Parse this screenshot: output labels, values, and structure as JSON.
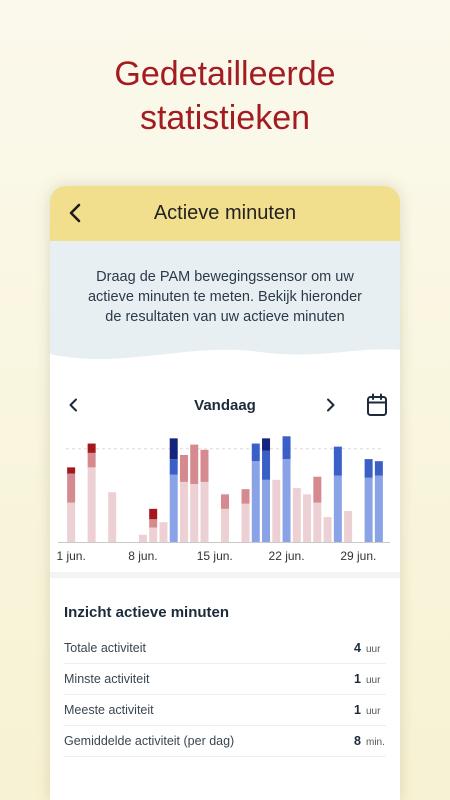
{
  "headline": {
    "line1": "Gedetailleerde",
    "line2": "statistieken"
  },
  "header": {
    "title": "Actieve minuten",
    "back_icon": "chevron-left-icon"
  },
  "info": {
    "text": "Draag de PAM bewegingssensor om uw actieve minuten te meten. Bekijk hieronder de resultaten van uw actieve minuten"
  },
  "period": {
    "label": "Vandaag",
    "prev_icon": "chevron-left-icon",
    "next_icon": "chevron-right-icon",
    "calendar_icon": "calendar-icon"
  },
  "colors": {
    "past_light": "#ecd0d3",
    "past_mid": "#d48a8e",
    "past_dark": "#a3181d",
    "cur_light": "#8aa3e6",
    "cur_mid": "#3a60c8",
    "cur_dark": "#15247a",
    "accent": "#a31c22",
    "header": "#f2df8d"
  },
  "chart_data": {
    "type": "bar",
    "stacked": true,
    "x_tick_labels": [
      "1 jun.",
      "8 jun.",
      "15 jun.",
      "22 jun.",
      "29 jun."
    ],
    "categories": [
      "1",
      "2",
      "3",
      "4",
      "5",
      "6",
      "7",
      "8",
      "9",
      "10",
      "11",
      "12",
      "13",
      "14",
      "15",
      "16",
      "17",
      "18",
      "19",
      "20",
      "21",
      "22",
      "23",
      "24",
      "25",
      "26",
      "27",
      "28",
      "29",
      "30",
      "31"
    ],
    "period_highlight": [
      false,
      false,
      false,
      false,
      false,
      false,
      false,
      false,
      false,
      false,
      true,
      false,
      false,
      false,
      false,
      false,
      false,
      false,
      true,
      true,
      false,
      true,
      false,
      false,
      false,
      false,
      true,
      false,
      true,
      true,
      true
    ],
    "series": [
      {
        "values": [
          38,
          0,
          72,
          0,
          48,
          0,
          0,
          7,
          14,
          19,
          65,
          58,
          56,
          58,
          0,
          32,
          0,
          37,
          78,
          60,
          60,
          80,
          52,
          46,
          38,
          24,
          64,
          30,
          0,
          62,
          64
        ]
      },
      {
        "values": [
          28,
          0,
          14,
          0,
          0,
          0,
          0,
          0,
          8,
          0,
          15,
          26,
          38,
          31,
          0,
          14,
          0,
          14,
          17,
          28,
          0,
          22,
          0,
          0,
          25,
          0,
          28,
          0,
          0,
          18,
          14
        ]
      },
      {
        "values": [
          6,
          0,
          9,
          0,
          0,
          0,
          0,
          0,
          10,
          0,
          20,
          0,
          0,
          0,
          0,
          0,
          0,
          0,
          0,
          12,
          0,
          0,
          0,
          0,
          0,
          0,
          0,
          0,
          0,
          0,
          0
        ]
      }
    ],
    "ylim": [
      0,
      110
    ],
    "grid": true
  },
  "stats": {
    "title": "Inzicht actieve minuten",
    "rows": [
      {
        "label": "Totale activiteit",
        "value": "4",
        "unit": "uur"
      },
      {
        "label": "Minste activiteit",
        "value": "1",
        "unit": "uur"
      },
      {
        "label": "Meeste activiteit",
        "value": "1",
        "unit": "uur"
      },
      {
        "label": "Gemiddelde activiteit (per dag)",
        "value": "8",
        "unit": "min."
      }
    ]
  }
}
